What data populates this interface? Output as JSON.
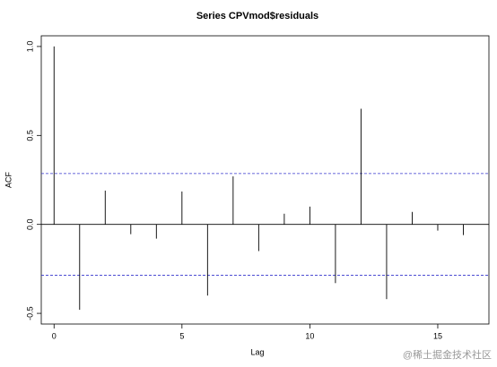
{
  "chart_data": {
    "type": "acf",
    "title": "Series  CPVmod$residuals",
    "x_label": "Lag",
    "y_label": "ACF",
    "x": [
      0,
      1,
      2,
      3,
      4,
      5,
      6,
      7,
      8,
      9,
      10,
      11,
      12,
      13,
      14,
      15,
      16
    ],
    "values": [
      1.0,
      -0.48,
      0.19,
      -0.055,
      -0.08,
      0.185,
      -0.4,
      0.27,
      -0.15,
      0.06,
      0.1,
      -0.33,
      0.65,
      -0.42,
      0.07,
      -0.035,
      -0.06
    ],
    "color": "#000000",
    "conf_lines": [
      0.286,
      -0.286
    ],
    "conf_color": "#3333cc",
    "xlim": [
      -0.5,
      17
    ],
    "ylim": [
      -0.56,
      1.06
    ],
    "xticks": [
      0,
      5,
      10,
      15
    ],
    "yticks": [
      {
        "value": -0.5,
        "label": "-0.5"
      },
      {
        "value": 0,
        "label": "0.0"
      },
      0.5,
      {
        "value": 1,
        "label": "1.0"
      }
    ],
    "watermark": "@稀土掘金技术社区"
  }
}
